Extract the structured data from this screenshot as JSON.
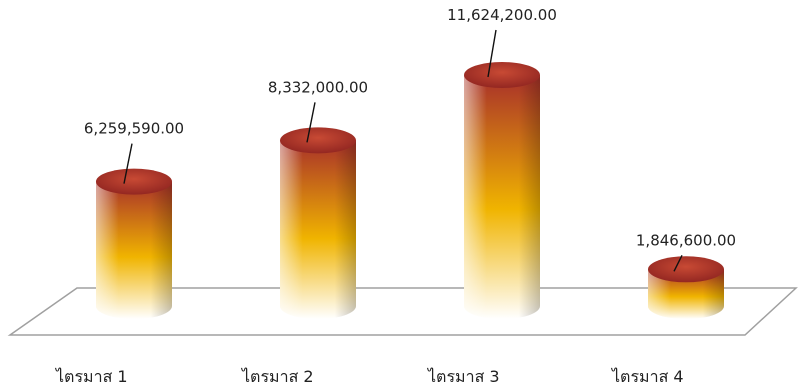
{
  "chart_data": {
    "type": "bar",
    "style": "3d-cylinder",
    "categories": [
      "ไตรมาส 1",
      "ไตรมาส 2",
      "ไตรมาส 3",
      "ไตรมาส 4"
    ],
    "values": [
      6259590,
      8332000,
      11624200,
      1846600
    ],
    "value_labels": [
      "6,259,590.00",
      "8,332,000.00",
      "11,624,200.00",
      "1,846,600.00"
    ],
    "title": "",
    "xlabel": "",
    "ylabel": "",
    "ylim": [
      0,
      12000000
    ],
    "grid": false,
    "legend": "none",
    "colors": {
      "top": "#a8302a",
      "middle": "#f0b400",
      "bottom": "#ffffff",
      "floor": "#a0a0a0"
    }
  }
}
